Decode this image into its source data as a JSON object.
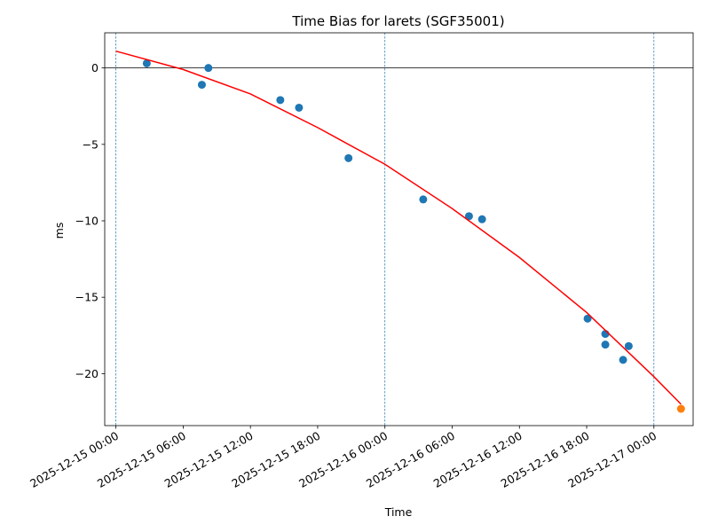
{
  "chart_data": {
    "type": "scatter",
    "title": "Time Bias for larets (SGF35001)",
    "xlabel": "Time",
    "ylabel": "ms",
    "xlim": [
      "2025-12-14T23:00:00",
      "2025-12-17T03:30:00"
    ],
    "ylim": [
      -23.4,
      2.3
    ],
    "yticks": [
      0,
      -5,
      -10,
      -15,
      -20
    ],
    "ytick_labels": [
      "0",
      "−5",
      "−10",
      "−15",
      "−20"
    ],
    "xticks": [
      "2025-12-15T00:00:00",
      "2025-12-15T06:00:00",
      "2025-12-15T12:00:00",
      "2025-12-15T18:00:00",
      "2025-12-16T00:00:00",
      "2025-12-16T06:00:00",
      "2025-12-16T12:00:00",
      "2025-12-16T18:00:00",
      "2025-12-17T00:00:00"
    ],
    "xtick_labels": [
      "2025-12-15 00:00",
      "2025-12-15 06:00",
      "2025-12-15 12:00",
      "2025-12-15 18:00",
      "2025-12-16 00:00",
      "2025-12-16 06:00",
      "2025-12-16 12:00",
      "2025-12-16 18:00",
      "2025-12-17 00:00"
    ],
    "vlines": [
      "2025-12-15T00:00:00",
      "2025-12-16T00:00:00",
      "2025-12-17T00:00:00"
    ],
    "hline": 0,
    "grid": false,
    "series": [
      {
        "kind": "points",
        "color": "#1f77b4",
        "points": [
          {
            "x": "2025-12-15T02:45:00",
            "y": 0.3
          },
          {
            "x": "2025-12-15T07:40:00",
            "y": -1.1
          },
          {
            "x": "2025-12-15T08:15:00",
            "y": 0.0
          },
          {
            "x": "2025-12-15T14:40:00",
            "y": -2.1
          },
          {
            "x": "2025-12-15T16:20:00",
            "y": -2.6
          },
          {
            "x": "2025-12-15T20:45:00",
            "y": -5.9
          },
          {
            "x": "2025-12-16T03:25:00",
            "y": -8.6
          },
          {
            "x": "2025-12-16T07:30:00",
            "y": -9.7
          },
          {
            "x": "2025-12-16T08:40:00",
            "y": -9.9
          },
          {
            "x": "2025-12-16T18:05:00",
            "y": -16.4
          },
          {
            "x": "2025-12-16T19:40:00",
            "y": -17.4
          },
          {
            "x": "2025-12-16T19:40:00",
            "y": -18.1
          },
          {
            "x": "2025-12-16T21:15:00",
            "y": -19.1
          },
          {
            "x": "2025-12-16T21:45:00",
            "y": -18.2
          }
        ]
      },
      {
        "kind": "points",
        "color": "#ff7f0e",
        "points": [
          {
            "x": "2025-12-17T02:25:00",
            "y": -22.3
          }
        ]
      },
      {
        "kind": "line",
        "color": "#ff0000",
        "points": [
          {
            "x": "2025-12-15T00:00:00",
            "y": 1.1
          },
          {
            "x": "2025-12-15T06:00:00",
            "y": -0.1
          },
          {
            "x": "2025-12-15T12:00:00",
            "y": -1.7
          },
          {
            "x": "2025-12-15T18:00:00",
            "y": -3.9
          },
          {
            "x": "2025-12-16T00:00:00",
            "y": -6.3
          },
          {
            "x": "2025-12-16T06:00:00",
            "y": -9.2
          },
          {
            "x": "2025-12-16T12:00:00",
            "y": -12.4
          },
          {
            "x": "2025-12-16T18:00:00",
            "y": -16.0
          },
          {
            "x": "2025-12-17T00:00:00",
            "y": -20.2
          },
          {
            "x": "2025-12-17T02:25:00",
            "y": -22.0
          }
        ]
      }
    ]
  }
}
